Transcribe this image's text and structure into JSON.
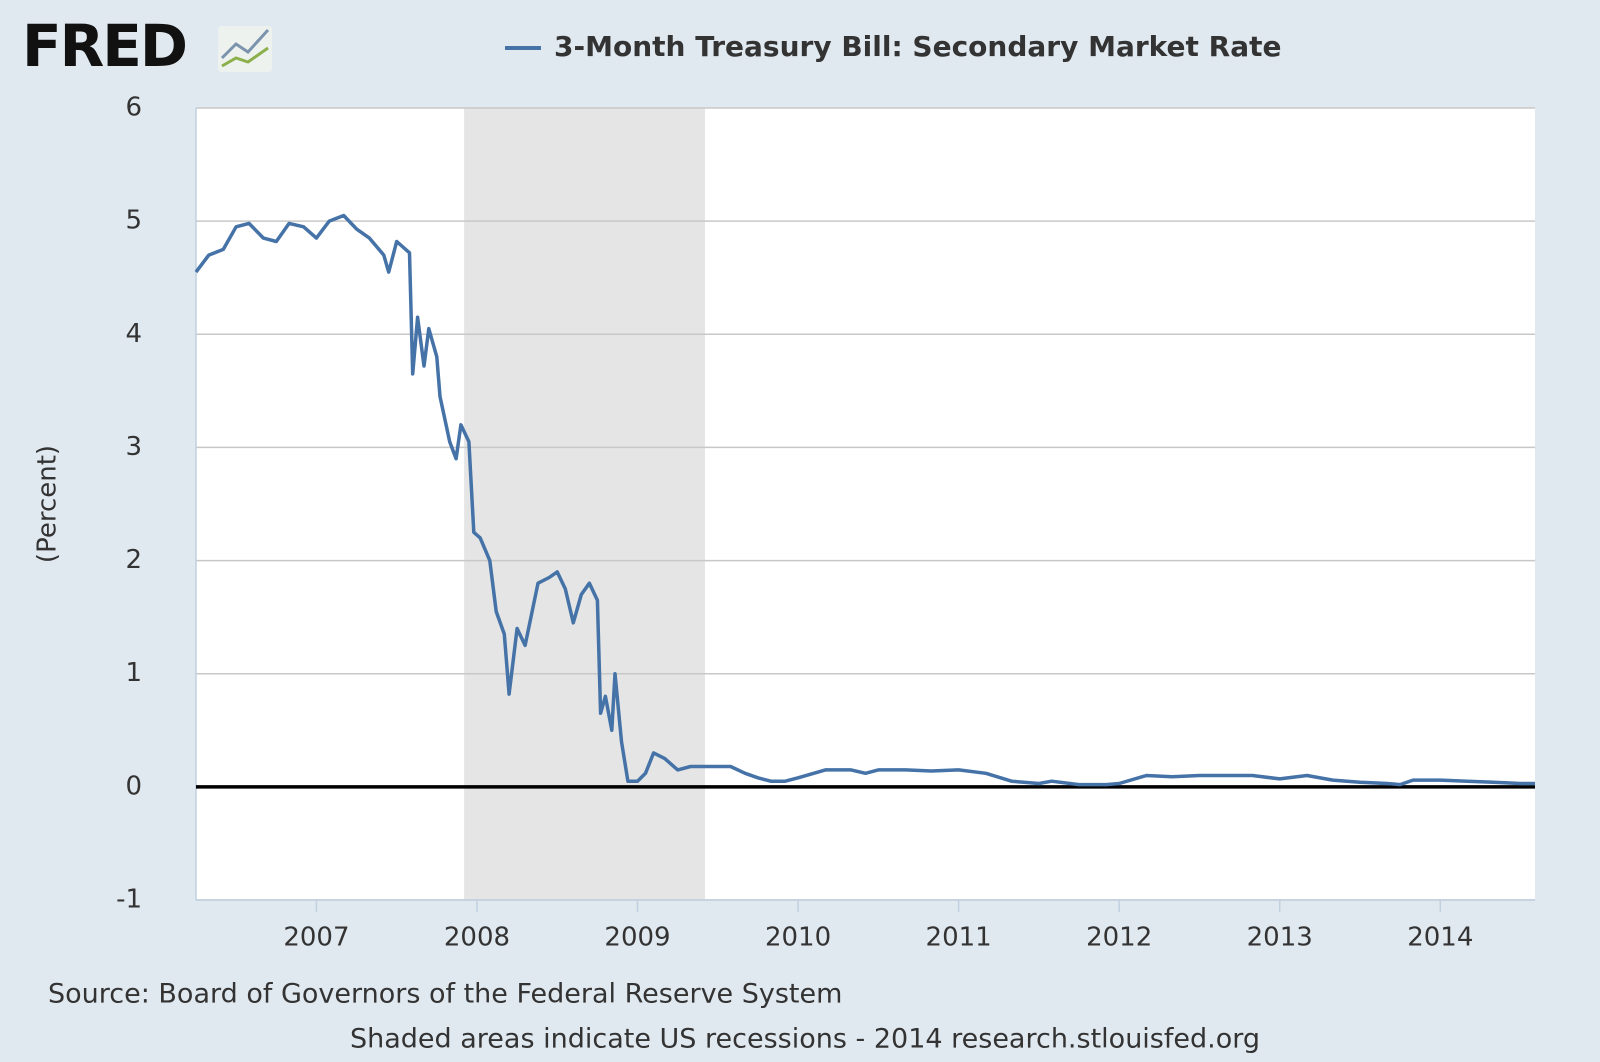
{
  "logo": "FRED",
  "chart_data": {
    "type": "line",
    "series": [
      {
        "name": "3-Month Treasury Bill: Secondary Market Rate",
        "color": "#4572a7",
        "x": [
          2006.25,
          2006.33,
          2006.42,
          2006.5,
          2006.58,
          2006.67,
          2006.75,
          2006.83,
          2006.92,
          2007.0,
          2007.08,
          2007.17,
          2007.25,
          2007.33,
          2007.42,
          2007.45,
          2007.5,
          2007.58,
          2007.6,
          2007.63,
          2007.67,
          2007.7,
          2007.75,
          2007.77,
          2007.83,
          2007.87,
          2007.9,
          2007.95,
          2007.98,
          2008.02,
          2008.08,
          2008.12,
          2008.17,
          2008.2,
          2008.25,
          2008.3,
          2008.38,
          2008.45,
          2008.5,
          2008.55,
          2008.6,
          2008.65,
          2008.7,
          2008.75,
          2008.77,
          2008.8,
          2008.84,
          2008.86,
          2008.9,
          2008.94,
          2009.0,
          2009.05,
          2009.1,
          2009.17,
          2009.25,
          2009.33,
          2009.42,
          2009.5,
          2009.58,
          2009.67,
          2009.75,
          2009.83,
          2009.92,
          2010.0,
          2010.17,
          2010.33,
          2010.42,
          2010.5,
          2010.67,
          2010.83,
          2011.0,
          2011.17,
          2011.33,
          2011.5,
          2011.58,
          2011.75,
          2011.92,
          2012.0,
          2012.17,
          2012.33,
          2012.5,
          2012.67,
          2012.83,
          2013.0,
          2013.17,
          2013.33,
          2013.5,
          2013.67,
          2013.75,
          2013.83,
          2014.0,
          2014.17,
          2014.33,
          2014.5,
          2014.59
        ],
        "values": [
          4.55,
          4.7,
          4.75,
          4.95,
          4.98,
          4.85,
          4.82,
          4.98,
          4.95,
          4.85,
          5.0,
          5.05,
          4.93,
          4.85,
          4.7,
          4.55,
          4.82,
          4.72,
          3.65,
          4.15,
          3.72,
          4.05,
          3.8,
          3.45,
          3.05,
          2.9,
          3.2,
          3.05,
          2.25,
          2.2,
          2.0,
          1.55,
          1.35,
          0.82,
          1.4,
          1.25,
          1.8,
          1.85,
          1.9,
          1.75,
          1.45,
          1.7,
          1.8,
          1.65,
          0.65,
          0.8,
          0.5,
          1.0,
          0.4,
          0.05,
          0.05,
          0.12,
          0.3,
          0.25,
          0.15,
          0.18,
          0.18,
          0.18,
          0.18,
          0.12,
          0.08,
          0.05,
          0.05,
          0.08,
          0.15,
          0.15,
          0.12,
          0.15,
          0.15,
          0.14,
          0.15,
          0.12,
          0.05,
          0.03,
          0.05,
          0.02,
          0.02,
          0.03,
          0.1,
          0.09,
          0.1,
          0.1,
          0.1,
          0.07,
          0.1,
          0.06,
          0.04,
          0.03,
          0.02,
          0.06,
          0.06,
          0.05,
          0.04,
          0.03,
          0.03
        ]
      }
    ],
    "recessions": [
      [
        2007.92,
        2009.42
      ]
    ],
    "ylabel": "(Percent)",
    "xlim": [
      2006.25,
      2014.59
    ],
    "xticks": [
      2007,
      2008,
      2009,
      2010,
      2011,
      2012,
      2013,
      2014
    ],
    "ylim": [
      -1,
      6
    ],
    "yticks": [
      -1,
      0,
      1,
      2,
      3,
      4,
      5,
      6
    ],
    "grid": true,
    "source": "Source: Board of Governors of the Federal Reserve System",
    "note": "Shaded areas indicate US recessions - 2014 research.stlouisfed.org"
  }
}
